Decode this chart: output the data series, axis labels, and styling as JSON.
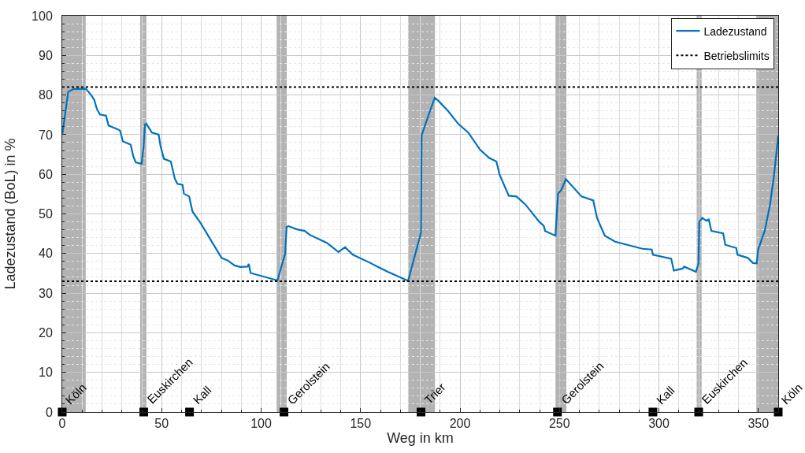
{
  "chart_data": {
    "type": "line",
    "xlabel": "Weg in km",
    "ylabel": "Ladezustand (BoL) in %",
    "xlim": [
      0,
      360
    ],
    "xticks": [
      0,
      50,
      100,
      150,
      200,
      250,
      300,
      350
    ],
    "ylim": [
      0,
      100
    ],
    "yticks": [
      0,
      10,
      20,
      30,
      40,
      50,
      60,
      70,
      80,
      90,
      100
    ],
    "grid": true,
    "legend": "top right",
    "line_style": "solid",
    "series": [
      {
        "name": "Ladezustand",
        "color": "#0072bd",
        "marker": "none",
        "x": [
          0.1,
          3.0,
          5.6,
          11.9,
          14.8,
          16.1,
          17.4,
          18.9,
          22,
          23.3,
          28.5,
          29.1,
          30.5,
          34.4,
          35.7,
          37.0,
          39.9,
          40.9,
          41.6,
          42.2,
          45.1,
          48.5,
          49.4,
          51.1,
          54.6,
          56.6,
          57.9,
          60.5,
          61.2,
          63.8,
          65.5,
          69.7,
          80.1,
          83.4,
          86.6,
          89.5,
          93.2,
          93.8,
          94.7,
          108.2,
          112.1,
          112.8,
          113.8,
          118,
          121.9,
          124.5,
          133,
          138.9,
          142.2,
          146.1,
          154.6,
          158.5,
          163.7,
          167.7,
          173.9,
          180.4,
          180.7,
          182.7,
          184.6,
          187.3,
          189.2,
          193.8,
          199.0,
          204.2,
          210.1,
          214.7,
          218.3,
          219.9,
          224.5,
          228.4,
          233,
          239.5,
          242.1,
          242.8,
          248,
          249.3,
          251,
          253.2,
          261.1,
          267,
          268.9,
          272.8,
          278,
          291.7,
          296.4,
          297,
          306.2,
          307.5,
          312,
          312.7,
          318.6,
          319.9,
          320.3,
          321.8,
          323.8,
          325.1,
          326.4,
          332.3,
          333.4,
          338.9,
          339.5,
          344.7,
          347.3,
          349.2,
          349.9,
          353.2,
          355.8,
          357.7,
          359,
          360
        ],
        "values": [
          70.2,
          80.8,
          81.5,
          81.6,
          79.8,
          78.8,
          76.5,
          75.1,
          74.8,
          72.3,
          71.2,
          71.0,
          68.3,
          67.5,
          64.6,
          63.0,
          62.6,
          66.9,
          72.5,
          72.8,
          70.5,
          70.0,
          67.2,
          63.9,
          63.2,
          58.9,
          57.6,
          57.3,
          55.1,
          54.4,
          50.6,
          47.6,
          38.9,
          38.2,
          37.0,
          36.6,
          36.7,
          37.4,
          35.1,
          33.2,
          40.0,
          46.7,
          46.9,
          46.1,
          45.7,
          44.7,
          42.7,
          40.4,
          41.6,
          39.7,
          37.7,
          36.7,
          35.4,
          34.5,
          33.1,
          45.3,
          69.8,
          72.8,
          75.5,
          79.3,
          78.5,
          76.1,
          72.8,
          70.5,
          66.2,
          64.1,
          63.2,
          59.9,
          54.6,
          54.4,
          52.3,
          48.2,
          47,
          45.7,
          44.5,
          55.1,
          56.1,
          58.8,
          54.4,
          53.4,
          49,
          44.5,
          43,
          41.2,
          41,
          39.7,
          38.7,
          35.7,
          36.2,
          36.7,
          35.4,
          37.4,
          48,
          49,
          48.3,
          48.6,
          45.7,
          45.1,
          42.2,
          41.4,
          39.7,
          38.9,
          37.6,
          37.5,
          41.0,
          45.7,
          52.1,
          58.9,
          64.9,
          69.8
        ]
      },
      {
        "color": "#000000",
        "type": "scatter",
        "marker": "square",
        "x": [
          0,
          41,
          64,
          111.5,
          180.4,
          249,
          297,
          320,
          360
        ],
        "values": [
          0,
          0,
          0,
          0,
          0,
          0,
          0,
          0,
          0
        ]
      }
    ],
    "ref_lines": [
      {
        "axis": "y",
        "value": 82,
        "label": "Betriebslimits",
        "color": "#000000",
        "line_style": "dotted"
      },
      {
        "axis": "y",
        "value": 33,
        "color": "#000000",
        "line_style": "dotted"
      }
    ],
    "bands": [
      {
        "axis": "x",
        "from": 0,
        "to": 11.8,
        "color": "#b3b3b3"
      },
      {
        "axis": "x",
        "from": 39.2,
        "to": 42.3,
        "color": "#b3b3b3"
      },
      {
        "axis": "x",
        "from": 107.8,
        "to": 112.9,
        "color": "#b3b3b3"
      },
      {
        "axis": "x",
        "from": 174,
        "to": 187.4,
        "color": "#b3b3b3"
      },
      {
        "axis": "x",
        "from": 248,
        "to": 253.5,
        "color": "#b3b3b3"
      },
      {
        "axis": "x",
        "from": 319,
        "to": 321.5,
        "color": "#b3b3b3"
      },
      {
        "axis": "x",
        "from": 349,
        "to": 360,
        "color": "#b3b3b3"
      }
    ],
    "annotations": [
      {
        "text": "Köln",
        "x": 0,
        "y": 0
      },
      {
        "text": "Euskirchen",
        "x": 41,
        "y": 0
      },
      {
        "text": "Kall",
        "x": 64,
        "y": 0
      },
      {
        "text": "Gerolstein",
        "x": 111.5,
        "y": 0
      },
      {
        "text": "Trier",
        "x": 180.4,
        "y": 0
      },
      {
        "text": "Gerolstein",
        "x": 249,
        "y": 0
      },
      {
        "text": "Kall",
        "x": 297,
        "y": 0
      },
      {
        "text": "Euskirchen",
        "x": 320,
        "y": 0
      },
      {
        "text": "Köln",
        "x": 360,
        "y": 0
      }
    ]
  }
}
